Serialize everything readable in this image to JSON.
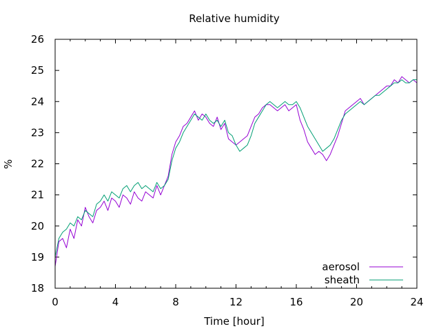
{
  "chart_data": {
    "type": "line",
    "title": "Relative humidity",
    "xlabel": "Time [hour]",
    "ylabel": "%",
    "xlim": [
      0,
      24
    ],
    "ylim": [
      18,
      26
    ],
    "xticks": [
      0,
      4,
      8,
      12,
      16,
      20,
      24
    ],
    "yticks": [
      18,
      19,
      20,
      21,
      22,
      23,
      24,
      25,
      26
    ],
    "grid": false,
    "legend_position": "bottom-right",
    "series": [
      {
        "name": "aerosol",
        "color": "#9400d3",
        "x": [
          0,
          0.25,
          0.5,
          0.75,
          1,
          1.25,
          1.5,
          1.75,
          2,
          2.25,
          2.5,
          2.75,
          3,
          3.25,
          3.5,
          3.75,
          4,
          4.25,
          4.5,
          4.75,
          5,
          5.25,
          5.5,
          5.75,
          6,
          6.25,
          6.5,
          6.75,
          7,
          7.25,
          7.5,
          7.75,
          8,
          8.25,
          8.5,
          8.75,
          9,
          9.25,
          9.5,
          9.75,
          10,
          10.25,
          10.5,
          10.75,
          11,
          11.25,
          11.5,
          11.75,
          12,
          12.25,
          12.5,
          12.75,
          13,
          13.25,
          13.5,
          13.75,
          14,
          14.25,
          14.5,
          14.75,
          15,
          15.25,
          15.5,
          15.75,
          16,
          16.25,
          16.5,
          16.75,
          17,
          17.25,
          17.5,
          17.75,
          18,
          18.25,
          18.5,
          18.75,
          19,
          19.25,
          19.5,
          19.75,
          20,
          20.25,
          20.5,
          20.75,
          21,
          21.25,
          21.5,
          21.75,
          22,
          22.25,
          22.5,
          22.75,
          23,
          23.25,
          23.5,
          23.75,
          24
        ],
        "y": [
          18.7,
          19.5,
          19.6,
          19.3,
          19.9,
          19.6,
          20.2,
          20.0,
          20.6,
          20.3,
          20.1,
          20.5,
          20.6,
          20.8,
          20.5,
          20.9,
          20.8,
          20.6,
          21.0,
          20.9,
          20.7,
          21.1,
          20.9,
          20.8,
          21.1,
          21.0,
          20.9,
          21.3,
          21.0,
          21.3,
          21.6,
          22.3,
          22.7,
          22.9,
          23.2,
          23.3,
          23.5,
          23.7,
          23.4,
          23.6,
          23.5,
          23.3,
          23.2,
          23.5,
          23.1,
          23.3,
          22.8,
          22.7,
          22.6,
          22.7,
          22.8,
          22.9,
          23.2,
          23.5,
          23.6,
          23.8,
          23.9,
          23.9,
          23.8,
          23.7,
          23.8,
          23.9,
          23.7,
          23.8,
          23.9,
          23.4,
          23.1,
          22.7,
          22.5,
          22.3,
          22.4,
          22.3,
          22.1,
          22.3,
          22.6,
          22.9,
          23.3,
          23.7,
          23.8,
          23.9,
          24.0,
          24.1,
          23.9,
          24.0,
          24.1,
          24.2,
          24.3,
          24.4,
          24.5,
          24.5,
          24.7,
          24.6,
          24.8,
          24.7,
          24.6,
          24.7,
          24.6
        ]
      },
      {
        "name": "sheath",
        "color": "#009e73",
        "x": [
          0,
          0.25,
          0.5,
          0.75,
          1,
          1.25,
          1.5,
          1.75,
          2,
          2.25,
          2.5,
          2.75,
          3,
          3.25,
          3.5,
          3.75,
          4,
          4.25,
          4.5,
          4.75,
          5,
          5.25,
          5.5,
          5.75,
          6,
          6.25,
          6.5,
          6.75,
          7,
          7.25,
          7.5,
          7.75,
          8,
          8.25,
          8.5,
          8.75,
          9,
          9.25,
          9.5,
          9.75,
          10,
          10.25,
          10.5,
          10.75,
          11,
          11.25,
          11.5,
          11.75,
          12,
          12.25,
          12.5,
          12.75,
          13,
          13.25,
          13.5,
          13.75,
          14,
          14.25,
          14.5,
          14.75,
          15,
          15.25,
          15.5,
          15.75,
          16,
          16.25,
          16.5,
          16.75,
          17,
          17.25,
          17.5,
          17.75,
          18,
          18.25,
          18.5,
          18.75,
          19,
          19.25,
          19.5,
          19.75,
          20,
          20.25,
          20.5,
          20.75,
          21,
          21.25,
          21.5,
          21.75,
          22,
          22.25,
          22.5,
          22.75,
          23,
          23.25,
          23.5,
          23.75,
          24
        ],
        "y": [
          19.0,
          19.6,
          19.8,
          19.9,
          20.1,
          20.0,
          20.3,
          20.2,
          20.5,
          20.4,
          20.3,
          20.7,
          20.8,
          21.0,
          20.8,
          21.1,
          21.0,
          20.9,
          21.2,
          21.3,
          21.1,
          21.3,
          21.4,
          21.2,
          21.3,
          21.2,
          21.1,
          21.4,
          21.2,
          21.3,
          21.5,
          22.1,
          22.5,
          22.7,
          23.0,
          23.2,
          23.4,
          23.6,
          23.5,
          23.4,
          23.6,
          23.4,
          23.3,
          23.4,
          23.2,
          23.4,
          23.0,
          22.9,
          22.6,
          22.4,
          22.5,
          22.6,
          22.9,
          23.3,
          23.5,
          23.7,
          23.9,
          24.0,
          23.9,
          23.8,
          23.9,
          24.0,
          23.9,
          23.9,
          24.0,
          23.8,
          23.5,
          23.2,
          23.0,
          22.8,
          22.6,
          22.4,
          22.5,
          22.6,
          22.8,
          23.1,
          23.4,
          23.6,
          23.7,
          23.8,
          23.9,
          24.0,
          23.9,
          24.0,
          24.1,
          24.2,
          24.2,
          24.3,
          24.4,
          24.5,
          24.6,
          24.6,
          24.7,
          24.6,
          24.6,
          24.7,
          24.7
        ]
      }
    ]
  }
}
